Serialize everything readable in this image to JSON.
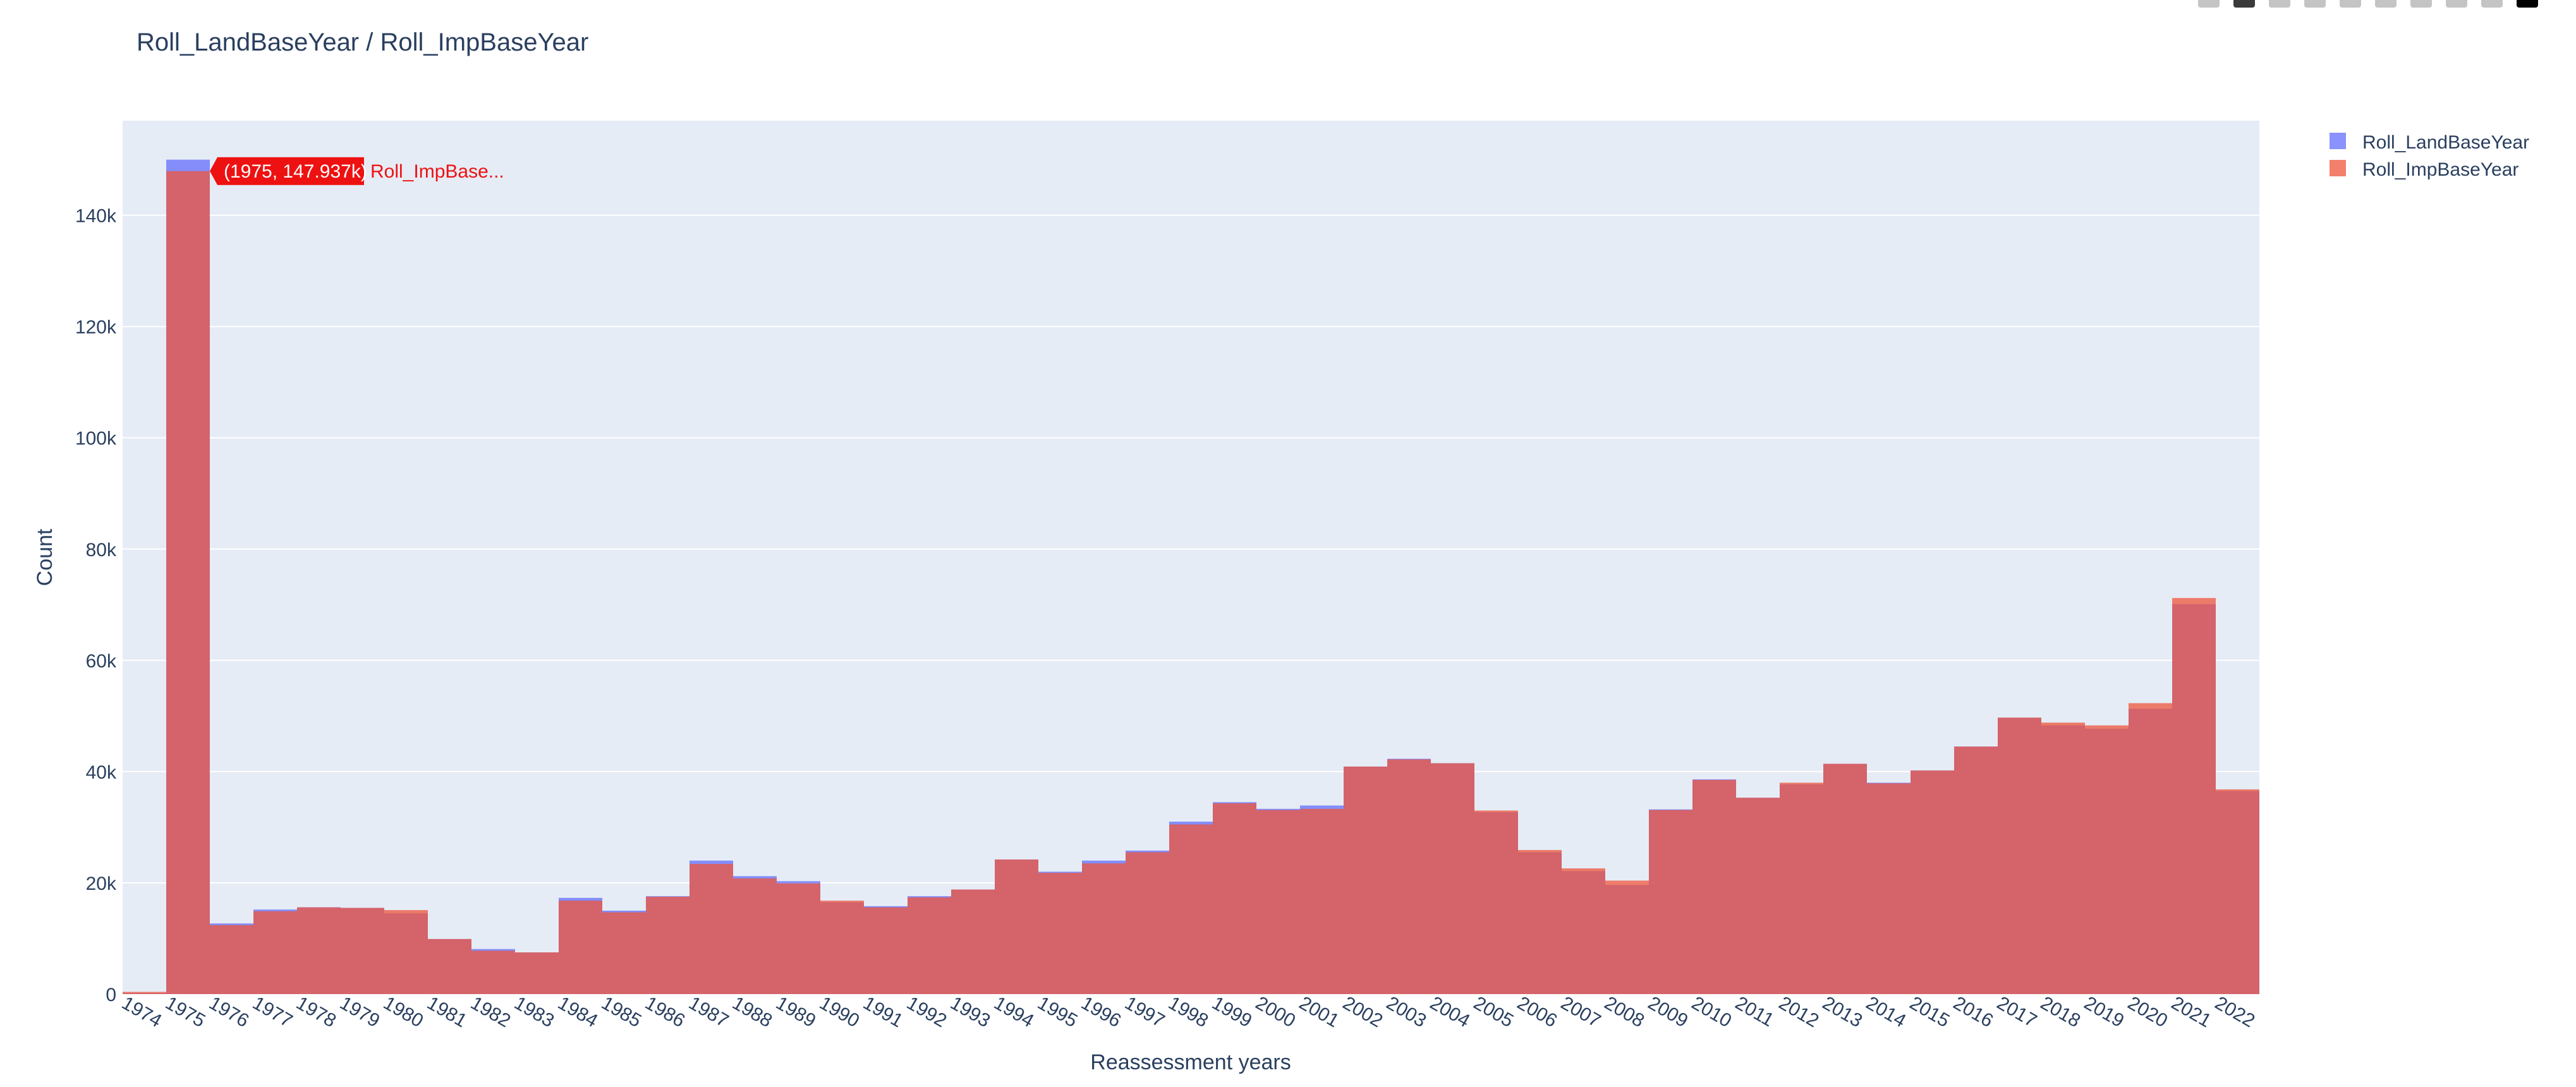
{
  "chart_data": {
    "type": "bar",
    "title": "Roll_LandBaseYear / Roll_ImpBaseYear",
    "xlabel": "Reassessment years",
    "ylabel": "Count",
    "ylim": [
      0,
      157000
    ],
    "yticks": [
      0,
      20000,
      40000,
      60000,
      80000,
      100000,
      120000,
      140000
    ],
    "ytick_labels": [
      "0",
      "20k",
      "40k",
      "60k",
      "80k",
      "100k",
      "120k",
      "140k"
    ],
    "grid": true,
    "barmode": "overlay",
    "legend_position": "top-right",
    "categories": [
      "1974",
      "1975",
      "1976",
      "1977",
      "1978",
      "1979",
      "1980",
      "1981",
      "1982",
      "1983",
      "1984",
      "1985",
      "1986",
      "1987",
      "1988",
      "1989",
      "1990",
      "1991",
      "1992",
      "1993",
      "1994",
      "1995",
      "1996",
      "1997",
      "1998",
      "1999",
      "2000",
      "2001",
      "2002",
      "2003",
      "2004",
      "2005",
      "2006",
      "2007",
      "2008",
      "2009",
      "2010",
      "2011",
      "2012",
      "2013",
      "2014",
      "2015",
      "2016",
      "2017",
      "2018",
      "2019",
      "2020",
      "2021",
      "2022"
    ],
    "series": [
      {
        "name": "Roll_LandBaseYear",
        "color": "#636efa",
        "values": [
          200,
          150000,
          12700,
          15200,
          15600,
          15500,
          14500,
          9900,
          8100,
          7500,
          17300,
          15000,
          17600,
          24000,
          21200,
          20300,
          16500,
          15800,
          17600,
          18800,
          24200,
          22000,
          24000,
          25800,
          31000,
          34500,
          33300,
          33900,
          40900,
          42300,
          41500,
          32700,
          25500,
          22100,
          19600,
          33200,
          38600,
          35300,
          37700,
          41400,
          38000,
          40200,
          44500,
          49700,
          48300,
          47700,
          51300,
          70100,
          36500
        ]
      },
      {
        "name": "Roll_ImpBaseYear",
        "color": "#ef553b",
        "values": [
          400,
          147937,
          12400,
          14900,
          15600,
          15500,
          15100,
          9900,
          7800,
          7500,
          16800,
          14700,
          17500,
          23400,
          20800,
          19900,
          16800,
          15600,
          17400,
          18800,
          24200,
          21800,
          23500,
          25500,
          30500,
          34300,
          33100,
          33300,
          40900,
          42200,
          41500,
          33000,
          25900,
          22600,
          20400,
          33100,
          38500,
          35300,
          38000,
          41400,
          37900,
          40200,
          44500,
          49700,
          48800,
          48300,
          52300,
          71200,
          36800
        ]
      }
    ],
    "annotations": [
      {
        "text": "(1975, 147.937k)",
        "series_label": "Roll_ImpBase...",
        "x": "1975",
        "y": 147937
      }
    ]
  },
  "icons": [
    "camera-icon",
    "zoom-icon",
    "pan-icon",
    "box-select-icon",
    "lasso-icon",
    "zoom-in-icon",
    "zoom-out-icon",
    "autoscale-icon",
    "reset-axes-icon",
    "plotly-logo-icon"
  ]
}
